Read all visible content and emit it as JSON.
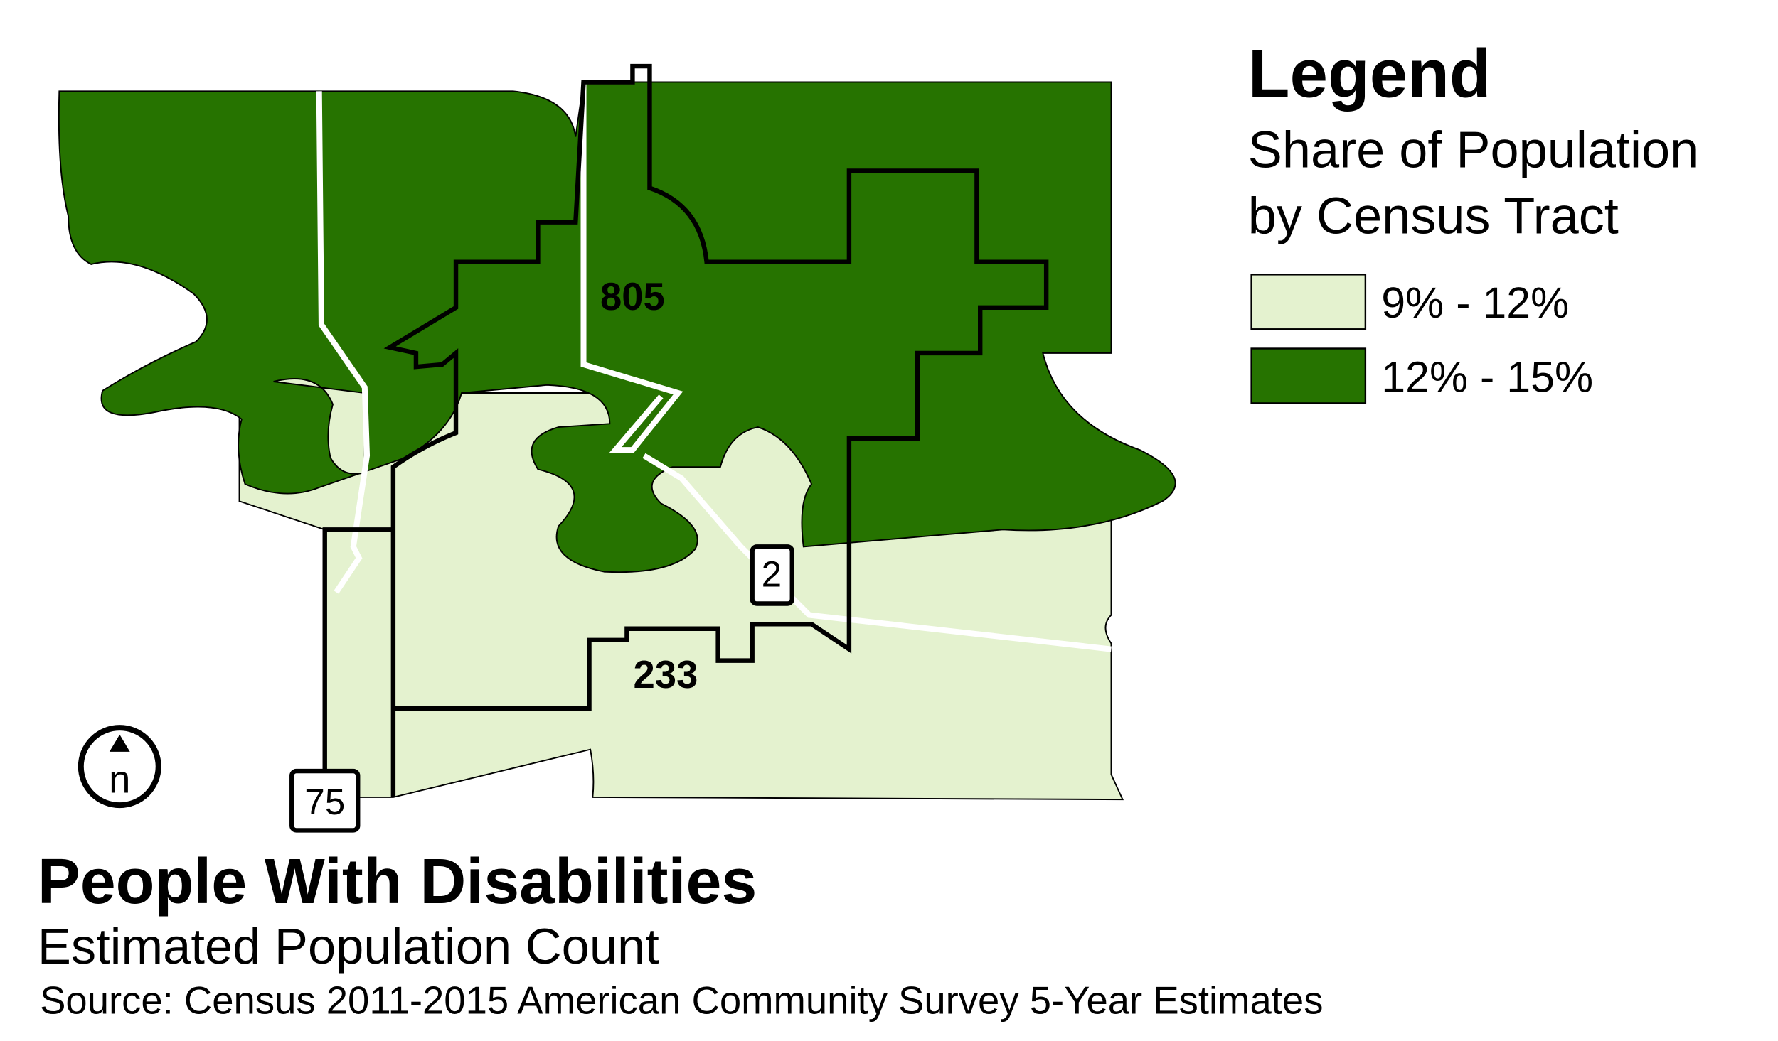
{
  "legend": {
    "title": "Legend",
    "subtitle": [
      "Share of Population",
      "by Census Tract"
    ],
    "items": [
      {
        "label": "9% - 12%",
        "color": "#e4f2cf"
      },
      {
        "label": "12% - 15%",
        "color": "#267300"
      }
    ]
  },
  "map": {
    "roads": [
      {
        "label": "805"
      },
      {
        "label": "233"
      },
      {
        "label": "2"
      },
      {
        "label": "75"
      }
    ],
    "north": "n"
  },
  "title": "People With Disabilities",
  "subtitle": "Estimated Population Count",
  "source": "Source: Census 2011-2015 American Community Survey 5-Year Estimates"
}
